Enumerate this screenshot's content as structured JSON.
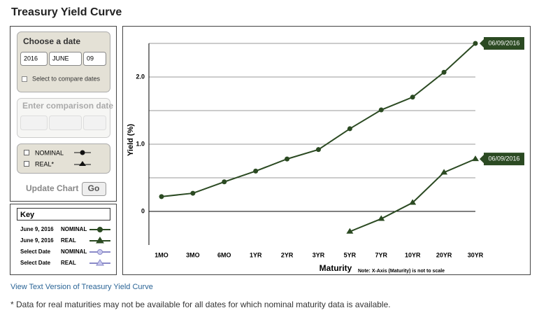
{
  "header": {
    "title": "Treasury Yield Curve"
  },
  "date_picker": {
    "title": "Choose a date",
    "year": "2016",
    "month": "JUNE",
    "day": "09",
    "compare_label": "Select to compare dates"
  },
  "comparison": {
    "title": "Enter comparison date"
  },
  "series_toggles": [
    {
      "label": "NOMINAL"
    },
    {
      "label": "REAL*"
    }
  ],
  "update": {
    "label": "Update Chart",
    "button": "Go"
  },
  "key": {
    "title": "Key",
    "rows": [
      {
        "date": "June 9, 2016",
        "type": "NOMINAL"
      },
      {
        "date": "June 9, 2016",
        "type": "REAL"
      },
      {
        "date": "Select Date",
        "type": "NOMINAL"
      },
      {
        "date": "Select Date",
        "type": "REAL"
      }
    ]
  },
  "link": "View Text Version of Treasury Yield Curve",
  "footnote": "* Data for real maturities may not be available for all dates for which nominal maturity data is available.",
  "chart_data": {
    "type": "line",
    "y_label": "Yield (%)",
    "x_label": "Maturity",
    "note": "Note: X-Axis (Maturity) is not to scale",
    "categories": [
      "1MO",
      "3MO",
      "6MO",
      "1YR",
      "2YR",
      "3YR",
      "5YR",
      "7YR",
      "10YR",
      "20YR",
      "30YR"
    ],
    "series": [
      {
        "name": "NOMINAL",
        "color": "#2b4a22",
        "marker": "circle",
        "end_label": "06/09/2016",
        "values": [
          0.22,
          0.27,
          0.44,
          0.6,
          0.78,
          0.92,
          1.23,
          1.51,
          1.7,
          2.07,
          2.5
        ]
      },
      {
        "name": "REAL",
        "color": "#2b4a22",
        "marker": "triangle",
        "end_label": "06/09/2016",
        "values": [
          null,
          null,
          null,
          null,
          null,
          null,
          -0.3,
          -0.11,
          0.13,
          0.58,
          0.78
        ]
      }
    ],
    "ylim": [
      -0.5,
      2.5
    ],
    "yticks": [
      0,
      {
        "value": 1,
        "label": "1.0"
      },
      {
        "value": 2,
        "label": "2.0"
      }
    ],
    "minor_grid": [
      0.5,
      1.5,
      2.5
    ]
  }
}
